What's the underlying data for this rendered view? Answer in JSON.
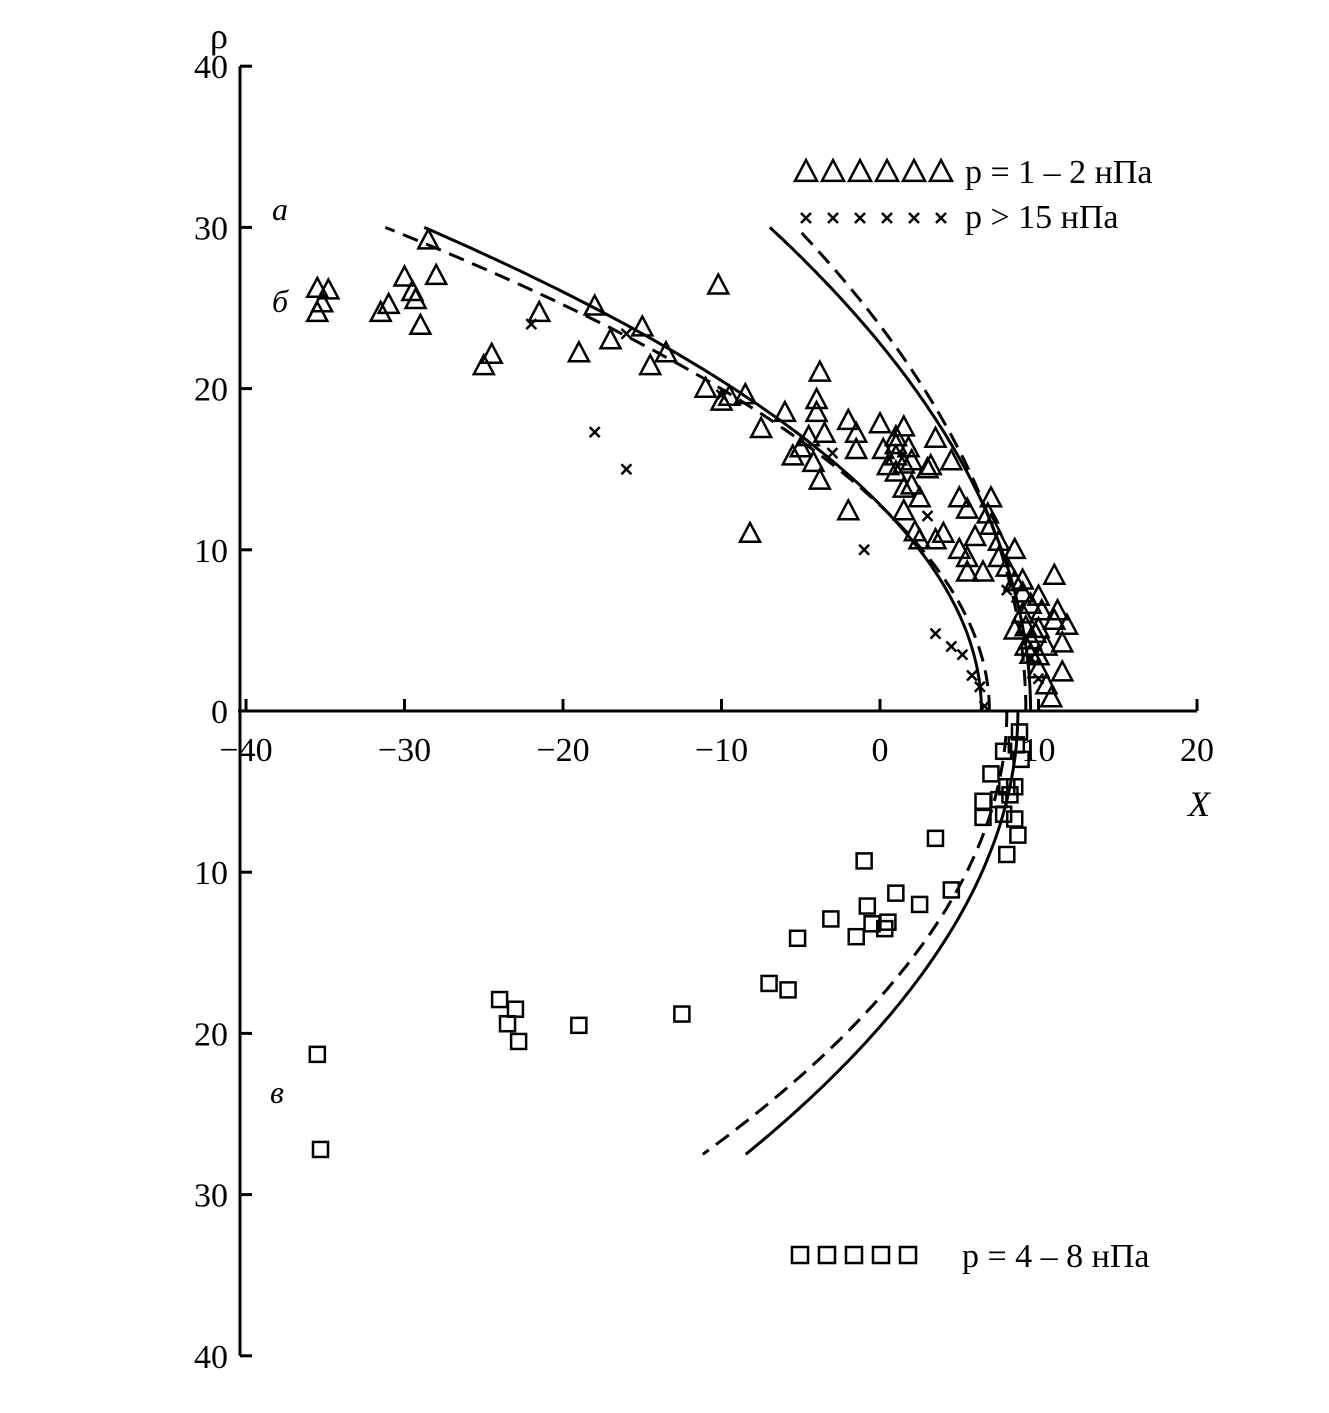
{
  "chart_data": {
    "type": "scatter",
    "title": "",
    "xlabel": "X",
    "ylabel": "ρ",
    "xlim": [
      -40,
      20
    ],
    "ylim": [
      -40,
      40
    ],
    "x_ticks": [
      {
        "value": -40,
        "label": "−40"
      },
      {
        "value": -30,
        "label": "−30"
      },
      {
        "value": -20,
        "label": "−20"
      },
      {
        "value": -10,
        "label": "−10"
      },
      {
        "value": 0,
        "label": "0"
      },
      {
        "value": 10,
        "label": "10"
      },
      {
        "value": 20,
        "label": "20"
      }
    ],
    "y_ticks": [
      {
        "value": 40,
        "label": "40"
      },
      {
        "value": 30,
        "label": "30"
      },
      {
        "value": 20,
        "label": "20"
      },
      {
        "value": 10,
        "label": "10"
      },
      {
        "value": 0,
        "label": "0"
      },
      {
        "value": -10,
        "label": "10"
      },
      {
        "value": -20,
        "label": "20"
      },
      {
        "value": -30,
        "label": "30"
      },
      {
        "value": -40,
        "label": "40"
      }
    ],
    "grid": false,
    "legend": [
      {
        "marker": "triangle",
        "text": "p = 1 – 2 нПа",
        "position": "top-right"
      },
      {
        "marker": "cross",
        "text": "p > 15 нПа",
        "position": "top-right"
      },
      {
        "marker": "square",
        "text": "p = 4 – 8 нПа",
        "position": "bottom-right"
      }
    ],
    "curve_labels": [
      {
        "text": "а",
        "x": -38.5,
        "y": 31
      },
      {
        "text": "б",
        "x": -38.5,
        "y": 25.5
      },
      {
        "text": "в",
        "x": -38.5,
        "y": -24
      }
    ],
    "series": [
      {
        "marker": "triangle",
        "points": [
          [
            -35.5,
            24.7
          ],
          [
            -35.5,
            26.2
          ],
          [
            -35.2,
            25.3
          ],
          [
            -34.8,
            26.1
          ],
          [
            -31.5,
            24.7
          ],
          [
            -31,
            25.2
          ],
          [
            -30,
            26.9
          ],
          [
            -29.5,
            26
          ],
          [
            -29.3,
            25.5
          ],
          [
            -29,
            23.9
          ],
          [
            -28.5,
            29.2
          ],
          [
            -28,
            27
          ],
          [
            -25,
            21.4
          ],
          [
            -24.5,
            22.1
          ],
          [
            -21.5,
            24.7
          ],
          [
            -19,
            22.2
          ],
          [
            -18,
            25.1
          ],
          [
            -17,
            23
          ],
          [
            -15,
            23.8
          ],
          [
            -14.5,
            21.4
          ],
          [
            -13.5,
            22.2
          ],
          [
            -11,
            20
          ],
          [
            -10.2,
            26.4
          ],
          [
            -10,
            19.2
          ],
          [
            -9.5,
            19.5
          ],
          [
            -8.5,
            19.6
          ],
          [
            -8.2,
            11
          ],
          [
            -7.5,
            17.5
          ],
          [
            -6,
            18.5
          ],
          [
            -5.5,
            15.8
          ],
          [
            -5,
            16.3
          ],
          [
            -4.5,
            17
          ],
          [
            -4,
            19.3
          ],
          [
            -4,
            18.5
          ],
          [
            -4.2,
            15.4
          ],
          [
            -3.8,
            21
          ],
          [
            -3.8,
            14.3
          ],
          [
            -3.5,
            17.2
          ],
          [
            -2,
            18
          ],
          [
            -1.5,
            17.2
          ],
          [
            -1.5,
            16.2
          ],
          [
            -2,
            12.4
          ],
          [
            0,
            17.8
          ],
          [
            0.2,
            16.2
          ],
          [
            0.5,
            15.2
          ],
          [
            1,
            17
          ],
          [
            1,
            16.5
          ],
          [
            1,
            14.8
          ],
          [
            1,
            15.8
          ],
          [
            1.5,
            15.3
          ],
          [
            1.5,
            17.6
          ],
          [
            1.8,
            16.3
          ],
          [
            1.5,
            13.8
          ],
          [
            1.5,
            12.4
          ],
          [
            2,
            14
          ],
          [
            2,
            15.5
          ],
          [
            2.2,
            11.1
          ],
          [
            2.5,
            13.2
          ],
          [
            2.5,
            10.6
          ],
          [
            3,
            15
          ],
          [
            3.2,
            15.2
          ],
          [
            3.5,
            16.9
          ],
          [
            3.5,
            10.6
          ],
          [
            4,
            11
          ],
          [
            4.5,
            15.5
          ],
          [
            5,
            13.2
          ],
          [
            5,
            10
          ],
          [
            5.5,
            12.5
          ],
          [
            5.5,
            9.5
          ],
          [
            5.5,
            8.6
          ],
          [
            6,
            10.8
          ],
          [
            6.5,
            8.6
          ],
          [
            6.8,
            12.2
          ],
          [
            7,
            13.2
          ],
          [
            7,
            11.5
          ],
          [
            7.5,
            10.5
          ],
          [
            7.5,
            9.5
          ],
          [
            8,
            8.9
          ],
          [
            8.5,
            8
          ],
          [
            8.5,
            10
          ],
          [
            9,
            7.3
          ],
          [
            9,
            6
          ],
          [
            9.2,
            5.2
          ],
          [
            9.5,
            6.6
          ],
          [
            9.5,
            4.4
          ],
          [
            9.5,
            3.5
          ],
          [
            9.8,
            4.8
          ],
          [
            10,
            7.1
          ],
          [
            10,
            3.4
          ],
          [
            10,
            2.6
          ],
          [
            10.2,
            6.2
          ],
          [
            10.5,
            4
          ],
          [
            10.5,
            1.6
          ],
          [
            10.8,
            0.8
          ],
          [
            11,
            8.4
          ],
          [
            11,
            5.6
          ],
          [
            11.2,
            6.2
          ],
          [
            11.5,
            4.2
          ],
          [
            11.5,
            2.4
          ],
          [
            11.8,
            5.3
          ],
          [
            9,
            8.1
          ],
          [
            8.5,
            5
          ],
          [
            9.2,
            4
          ],
          [
            10,
            5.1
          ]
        ]
      },
      {
        "marker": "cross",
        "points": [
          [
            -16,
            15
          ],
          [
            3.5,
            4.8
          ],
          [
            4.5,
            4
          ],
          [
            5.2,
            3.5
          ],
          [
            5.8,
            2.2
          ],
          [
            6.3,
            1.5
          ],
          [
            6.6,
            0.3
          ],
          [
            -22,
            24
          ],
          [
            -16,
            23.4
          ],
          [
            -10,
            19.6
          ],
          [
            -3,
            16
          ],
          [
            3,
            12.1
          ],
          [
            8,
            7.5
          ],
          [
            9.5,
            3.3
          ],
          [
            -18,
            17.3
          ],
          [
            -1,
            10
          ],
          [
            10,
            2
          ]
        ]
      },
      {
        "marker": "square",
        "points": [
          [
            -35.5,
            -21.3
          ],
          [
            -35.3,
            -27.2
          ],
          [
            -24,
            -17.9
          ],
          [
            -23.5,
            -19.4
          ],
          [
            -23,
            -18.5
          ],
          [
            -22.8,
            -20.5
          ],
          [
            -19,
            -19.5
          ],
          [
            -12.5,
            -18.8
          ],
          [
            -7,
            -16.9
          ],
          [
            -5.8,
            -17.3
          ],
          [
            -5.2,
            -14.1
          ],
          [
            -3.1,
            -12.9
          ],
          [
            -1.5,
            -14
          ],
          [
            -1,
            -9.3
          ],
          [
            -0.8,
            -12.1
          ],
          [
            -0.5,
            -13.2
          ],
          [
            0.3,
            -13.5
          ],
          [
            0.5,
            -13.1
          ],
          [
            1,
            -11.3
          ],
          [
            2.5,
            -12
          ],
          [
            3.5,
            -7.9
          ],
          [
            4.5,
            -11.1
          ],
          [
            6.5,
            -5.6
          ],
          [
            6.5,
            -6.6
          ],
          [
            7,
            -3.9
          ],
          [
            7.5,
            -5.5
          ],
          [
            7.8,
            -2.5
          ],
          [
            7.8,
            -6.4
          ],
          [
            8,
            -4.7
          ],
          [
            8,
            -8.9
          ],
          [
            8.2,
            -5.2
          ],
          [
            8.5,
            -4.7
          ],
          [
            8.5,
            -6.7
          ],
          [
            8.6,
            -2.1
          ],
          [
            8.7,
            -7.7
          ],
          [
            8.9,
            -3
          ],
          [
            8.8,
            -1.3
          ]
        ]
      }
    ],
    "curves": [
      {
        "name": "а",
        "style": "solid",
        "r0": 9.5,
        "K": 2.4
      },
      {
        "name": "а",
        "style": "dashed",
        "r0": 9.2,
        "K": 2.6
      },
      {
        "name": "б",
        "style": "solid",
        "r0": 6.4,
        "K": 2.0
      },
      {
        "name": "б",
        "style": "dashed",
        "r0": 6.9,
        "K": 1.85
      },
      {
        "name": "в",
        "style": "solid",
        "r0": 8.7,
        "K": 2.25
      },
      {
        "name": "в",
        "style": "dashed",
        "r0": 8.0,
        "K": 2.22
      }
    ]
  }
}
